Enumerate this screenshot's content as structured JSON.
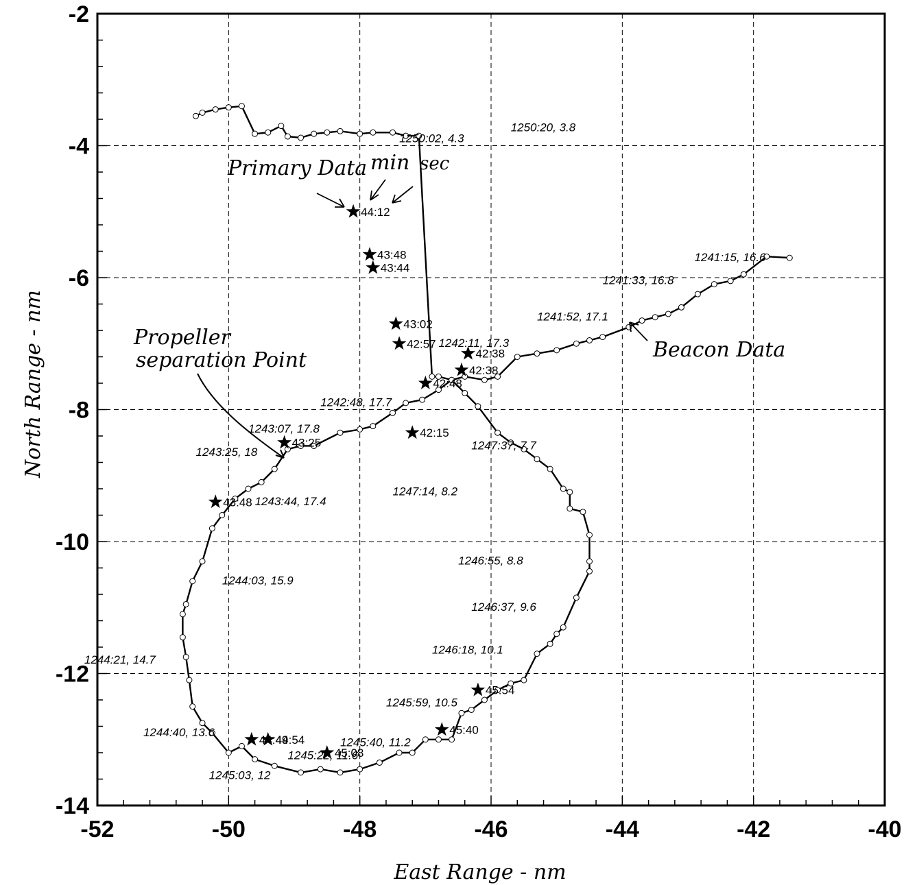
{
  "chart_data": {
    "type": "line",
    "xlabel": "East Range - nm",
    "ylabel": "North Range - nm",
    "xlim": [
      -52,
      -40
    ],
    "ylim": [
      -14,
      -2
    ],
    "xticks": [
      -52,
      -50,
      -48,
      -46,
      -44,
      -42,
      -40
    ],
    "yticks": [
      -14,
      -12,
      -10,
      -8,
      -6,
      -4,
      -2
    ],
    "grid": true,
    "series": [
      {
        "name": "Beacon Data",
        "x": [
          -41.45,
          -41.8,
          -42.15,
          -42.35,
          -42.6,
          -42.85,
          -43.1,
          -43.3,
          -43.5,
          -43.7,
          -43.9,
          -44.3,
          -44.5,
          -44.7,
          -45.0,
          -45.3,
          -45.6,
          -45.9,
          -46.1,
          -46.4,
          -46.6,
          -46.8,
          -47.05,
          -47.3,
          -47.5,
          -47.8,
          -48.0,
          -48.3,
          -48.7,
          -48.9,
          -49.1,
          -49.3,
          -49.5,
          -49.7,
          -49.9,
          -50.1,
          -50.25,
          -50.4,
          -50.55,
          -50.65,
          -50.7,
          -50.7,
          -50.65,
          -50.6,
          -50.55,
          -50.4,
          -50.25,
          -50.0,
          -49.8,
          -49.6,
          -49.3,
          -48.9,
          -48.6,
          -48.3,
          -48.0,
          -47.7,
          -47.4,
          -47.2,
          -47.0,
          -46.8,
          -46.6,
          -46.45,
          -46.3,
          -46.1,
          -45.9,
          -45.7,
          -45.5,
          -45.3,
          -45.1,
          -45.0,
          -44.9,
          -44.7,
          -44.5,
          -44.5,
          -44.5,
          -44.6,
          -44.8,
          -44.8,
          -44.9,
          -45.1,
          -45.3,
          -45.5,
          -45.7,
          -45.9,
          -46.2,
          -46.4,
          -46.6,
          -46.8,
          -46.9,
          -47.1,
          -47.3,
          -47.5,
          -47.8,
          -48.0,
          -48.3,
          -48.5,
          -48.7,
          -48.9,
          -49.1,
          -49.2,
          -49.4,
          -49.6,
          -49.8,
          -50.0,
          -50.2,
          -50.4,
          -50.5
        ],
        "y": [
          -5.7,
          -5.68,
          -5.95,
          -6.05,
          -6.1,
          -6.25,
          -6.45,
          -6.55,
          -6.6,
          -6.65,
          -6.75,
          -6.9,
          -6.95,
          -7.0,
          -7.1,
          -7.15,
          -7.2,
          -7.5,
          -7.55,
          -7.5,
          -7.55,
          -7.7,
          -7.85,
          -7.9,
          -8.05,
          -8.25,
          -8.3,
          -8.35,
          -8.55,
          -8.55,
          -8.6,
          -8.9,
          -9.1,
          -9.2,
          -9.35,
          -9.6,
          -9.8,
          -10.3,
          -10.6,
          -10.95,
          -11.1,
          -11.45,
          -11.75,
          -12.1,
          -12.5,
          -12.75,
          -12.9,
          -13.2,
          -13.1,
          -13.3,
          -13.4,
          -13.5,
          -13.45,
          -13.5,
          -13.45,
          -13.35,
          -13.2,
          -13.2,
          -13.0,
          -13.0,
          -13.0,
          -12.6,
          -12.55,
          -12.4,
          -12.25,
          -12.15,
          -12.1,
          -11.7,
          -11.55,
          -11.4,
          -11.3,
          -10.85,
          -10.45,
          -10.3,
          -9.9,
          -9.55,
          -9.5,
          -9.25,
          -9.2,
          -8.9,
          -8.75,
          -8.6,
          -8.5,
          -8.35,
          -7.95,
          -7.75,
          -7.55,
          -7.5,
          -7.5,
          -3.85,
          -3.85,
          -3.8,
          -3.8,
          -3.82,
          -3.78,
          -3.8,
          -3.82,
          -3.88,
          -3.86,
          -3.7,
          -3.8,
          -3.82,
          -3.4,
          -3.42,
          -3.45,
          -3.5,
          -3.55
        ]
      }
    ],
    "beacon_labels": [
      {
        "text": "1250:02, 4.3",
        "x": -47.4,
        "y": -3.95
      },
      {
        "text": "1250:20, 3.8",
        "x": -45.7,
        "y": -3.78
      },
      {
        "text": "1241:15, 16.6",
        "x": -42.9,
        "y": -5.75
      },
      {
        "text": "1241:33, 16.8",
        "x": -44.3,
        "y": -6.1
      },
      {
        "text": "1241:52, 17.1",
        "x": -45.3,
        "y": -6.65
      },
      {
        "text": "1242:11, 17.3",
        "x": -46.8,
        "y": -7.05
      },
      {
        "text": "1242:48, 17.7",
        "x": -48.6,
        "y": -7.95
      },
      {
        "text": "1243:07, 17.8",
        "x": -49.7,
        "y": -8.35
      },
      {
        "text": "1243:25,   18",
        "x": -50.5,
        "y": -8.7
      },
      {
        "text": "1243:44, 17.4",
        "x": -49.6,
        "y": -9.45
      },
      {
        "text": "1244:03, 15.9",
        "x": -50.1,
        "y": -10.65
      },
      {
        "text": "1244:21, 14.7",
        "x": -52.2,
        "y": -11.85
      },
      {
        "text": "1244:40, 13.6",
        "x": -51.3,
        "y": -12.95
      },
      {
        "text": "1245:03,  12",
        "x": -50.3,
        "y": -13.6
      },
      {
        "text": "1245:22, 11.6",
        "x": -49.1,
        "y": -13.3
      },
      {
        "text": "1245:40, 11.2",
        "x": -48.3,
        "y": -13.1
      },
      {
        "text": "1245:59, 10.5",
        "x": -47.6,
        "y": -12.5
      },
      {
        "text": "1246:18, 10.1",
        "x": -46.9,
        "y": -11.7
      },
      {
        "text": "1246:37,   9.6",
        "x": -46.3,
        "y": -11.05
      },
      {
        "text": "1246:55,   8.8",
        "x": -46.5,
        "y": -10.35
      },
      {
        "text": "1247:14,   8.2",
        "x": -47.5,
        "y": -9.3
      },
      {
        "text": "1247:37,   7.7",
        "x": -46.3,
        "y": -8.6
      }
    ],
    "primary_points": [
      {
        "label": "44:12",
        "x": -48.1,
        "y": -5.0
      },
      {
        "label": "43:48",
        "x": -47.85,
        "y": -5.65
      },
      {
        "label": "43:44",
        "x": -47.8,
        "y": -5.85
      },
      {
        "label": "43:02",
        "x": -47.45,
        "y": -6.7
      },
      {
        "label": "42:57",
        "x": -47.4,
        "y": -7.0
      },
      {
        "label": "42:38",
        "x": -46.35,
        "y": -7.15
      },
      {
        "label": "42:38",
        "x": -46.45,
        "y": -7.4
      },
      {
        "label": "42:48",
        "x": -47.0,
        "y": -7.6
      },
      {
        "label": "42:15",
        "x": -47.2,
        "y": -8.35
      },
      {
        "label": "43:25",
        "x": -49.15,
        "y": -8.5
      },
      {
        "label": "43:48",
        "x": -50.2,
        "y": -9.4
      },
      {
        "label": "45:54",
        "x": -46.2,
        "y": -12.25
      },
      {
        "label": "45:40",
        "x": -46.75,
        "y": -12.85
      },
      {
        "label": "44:49",
        "x": -49.65,
        "y": -13.0
      },
      {
        "label": "44:54",
        "x": -49.4,
        "y": -13.0
      },
      {
        "label": "45:08",
        "x": -48.5,
        "y": -13.2
      }
    ],
    "annotations": {
      "primary_data": "Primary Data",
      "min": "min",
      "sec": "sec",
      "propeller_line1": "Propeller",
      "propeller_line2": "separation Point",
      "beacon": "Beacon Data"
    }
  }
}
